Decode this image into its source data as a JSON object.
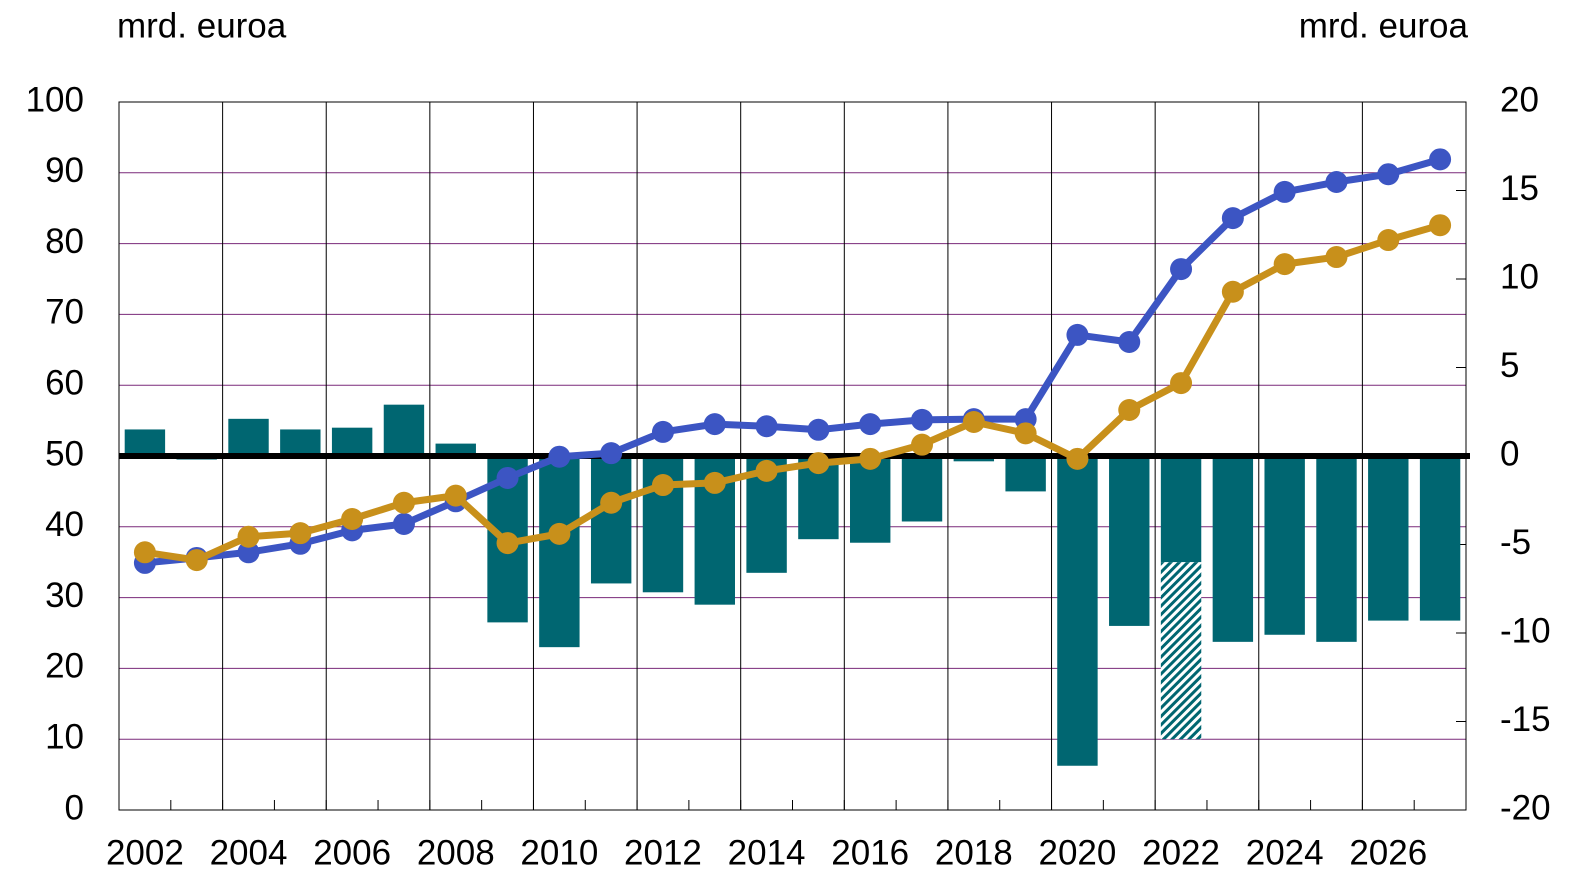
{
  "chart_data": {
    "type": "bar_line",
    "y_label": "mrd. euroa",
    "y2_label": "mrd. euroa",
    "categories": [
      "2002",
      null,
      "2004",
      null,
      "2006",
      null,
      "2008",
      null,
      "2010",
      null,
      "2012",
      null,
      "2014",
      null,
      "2016",
      null,
      "2018",
      null,
      "2020",
      null,
      "2022",
      null,
      "2024",
      null,
      "2026",
      null
    ],
    "ylim": [
      0,
      100
    ],
    "yticks": [
      0,
      10,
      20,
      30,
      40,
      50,
      60,
      70,
      80,
      90,
      100
    ],
    "y2lim": [
      -20,
      20
    ],
    "y2ticks": [
      -20,
      -15,
      -10,
      -5,
      0,
      5,
      10,
      15,
      20
    ],
    "grid": true,
    "series": [
      {
        "type": "bar",
        "axis": "y2",
        "color": "#006671",
        "values": [
          1.5,
          -0.2,
          2.1,
          1.5,
          1.6,
          2.9,
          0.7,
          -9.4,
          -10.8,
          -7.2,
          -7.7,
          -8.4,
          -6.6,
          -4.7,
          -4.9,
          -3.7,
          -0.3,
          -2.0,
          -17.5,
          -9.6,
          -6.0,
          -10.5,
          -10.1,
          -10.5,
          -9.3,
          -9.3
        ]
      },
      {
        "type": "bar",
        "axis": "y2",
        "color": "#006671",
        "pattern": "hatch",
        "values": [
          null,
          null,
          null,
          null,
          null,
          null,
          null,
          null,
          null,
          null,
          null,
          null,
          null,
          null,
          null,
          null,
          null,
          null,
          null,
          null,
          -10.0,
          null,
          null,
          null,
          null,
          null
        ]
      },
      {
        "type": "line",
        "axis": "y",
        "color": "#3c55c3",
        "values": [
          34.9,
          35.6,
          36.4,
          37.6,
          39.5,
          40.4,
          43.6,
          46.9,
          49.9,
          50.4,
          53.4,
          54.5,
          54.2,
          53.7,
          54.5,
          55.1,
          55.2,
          55.2,
          67.1,
          66.1,
          76.4,
          83.6,
          87.3,
          88.7,
          89.8,
          91.9
        ]
      },
      {
        "type": "line",
        "axis": "y",
        "color": "#c8901b",
        "values": [
          36.4,
          35.3,
          38.6,
          39.1,
          41.1,
          43.4,
          44.4,
          37.7,
          39.0,
          43.4,
          45.9,
          46.2,
          47.9,
          49.0,
          49.6,
          51.6,
          54.8,
          53.2,
          49.6,
          56.5,
          60.3,
          73.2,
          77.1,
          78.1,
          80.5,
          82.6
        ]
      }
    ]
  }
}
